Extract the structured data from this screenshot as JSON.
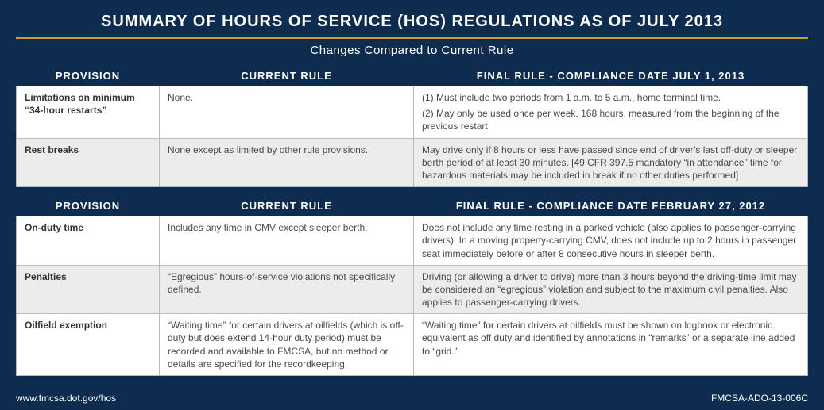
{
  "colors": {
    "page_bg": "#0d2c4f",
    "accent": "#c79a3a",
    "header_text": "#ffffff",
    "row_alt_bg": "#ececec",
    "cell_border": "#bbbbbb",
    "body_text": "#4a4a4a"
  },
  "header": {
    "title": "SUMMARY OF HOURS OF SERVICE (HOS) REGULATIONS AS OF JULY 2013",
    "subtitle": "Changes Compared to Current Rule"
  },
  "table1": {
    "columns": {
      "provision": "PROVISION",
      "current": "CURRENT RULE",
      "final": "FINAL RULE - COMPLIANCE DATE JULY 1, 2013"
    },
    "rows": [
      {
        "provision": "Limitations on minimum “34-hour restarts”",
        "current": "None.",
        "final1": "(1) Must include two periods from 1 a.m. to 5 a.m., home terminal time.",
        "final2": "(2) May only be used once per week, 168 hours, measured from the beginning of the previous restart."
      },
      {
        "provision": "Rest breaks",
        "current": "None except as limited by other rule provisions.",
        "final1": "May drive only if 8 hours or less have passed since end of driver’s last off-duty or sleeper berth period of at least 30 minutes. [49 CFR 397.5 mandatory “in attendance” time for hazardous materials may be included in break if no other duties performed]"
      }
    ]
  },
  "table2": {
    "columns": {
      "provision": "PROVISION",
      "current": "CURRENT RULE",
      "final": "FINAL RULE - COMPLIANCE DATE FEBRUARY 27, 2012"
    },
    "rows": [
      {
        "provision": "On-duty time",
        "current": "Includes any time in CMV except sleeper berth.",
        "final1": "Does not include any time resting in a parked vehicle (also applies to passenger-carrying drivers). In a moving property-carrying CMV, does not include up to 2 hours in passenger seat immediately before or after 8 consecutive hours in sleeper berth."
      },
      {
        "provision": "Penalties",
        "current": "“Egregious” hours-of-service violations not specifically defined.",
        "final1": "Driving (or allowing a driver to drive) more than 3 hours beyond the driving-time limit may be considered an “egregious” violation and subject to the maximum civil penalties. Also applies to passenger-carrying drivers."
      },
      {
        "provision": "Oilfield exemption",
        "current": "“Waiting time” for certain drivers at oilfields (which is off-duty but does extend 14-hour duty period) must be recorded and available to FMCSA, but no method or details are specified for the recordkeeping.",
        "final1": "“Waiting time” for certain drivers at oilfields must be shown on logbook or electronic equivalent as off duty and identified by annotations in “remarks” or a separate line added to “grid.”"
      }
    ]
  },
  "footer": {
    "url": "www.fmcsa.dot.gov/hos",
    "doc_id": "FMCSA-ADO-13-006C"
  }
}
